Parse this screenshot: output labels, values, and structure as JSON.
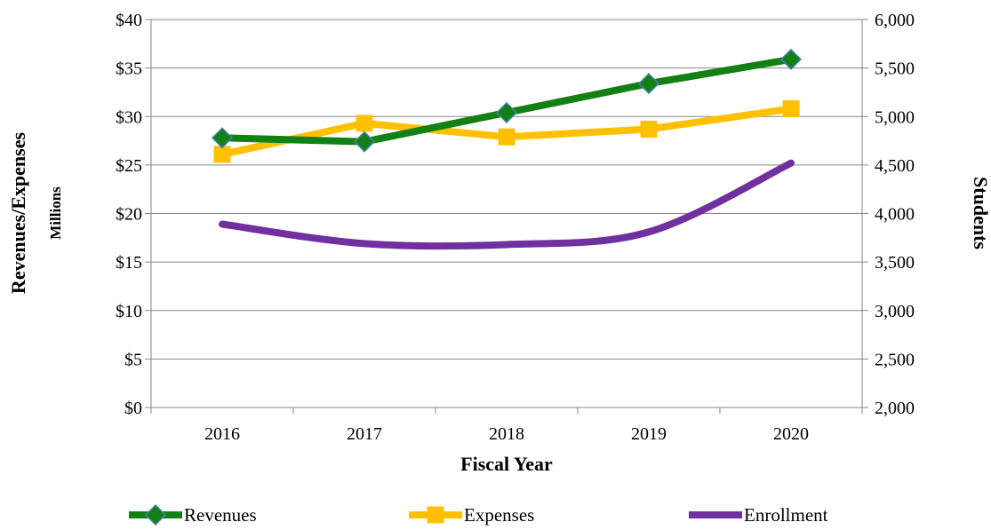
{
  "chart_data": {
    "type": "line",
    "categories": [
      "2016",
      "2017",
      "2018",
      "2019",
      "2020"
    ],
    "xlabel": "Fiscal Year",
    "y_left": {
      "label": "Revenues/Expenses",
      "sublabel": "Millions",
      "range": [
        0,
        40
      ],
      "ticks": [
        0,
        5,
        10,
        15,
        20,
        25,
        30,
        35,
        40
      ],
      "tick_labels": [
        "$0",
        "$5",
        "$10",
        "$15",
        "$20",
        "$25",
        "$30",
        "$35",
        "$40"
      ]
    },
    "y_right": {
      "label": "Students",
      "range": [
        2000,
        6000
      ],
      "ticks": [
        2000,
        2500,
        3000,
        3500,
        4000,
        4500,
        5000,
        5500,
        6000
      ],
      "tick_labels": [
        "2,000",
        "2,500",
        "3,000",
        "3,500",
        "4,000",
        "4,500",
        "5,000",
        "5,500",
        "6,000"
      ]
    },
    "series": [
      {
        "name": "Revenues",
        "axis": "left",
        "values": [
          27.8,
          27.4,
          30.4,
          33.4,
          35.9
        ],
        "color": "#128012",
        "marker": "diamond",
        "marker_fill": "#128012",
        "marker_stroke": "#4a7fb5",
        "smooth": false
      },
      {
        "name": "Expenses",
        "axis": "left",
        "values": [
          26.1,
          29.3,
          27.9,
          28.7,
          30.8
        ],
        "color": "#ffc000",
        "marker": "square",
        "marker_fill": "#ffc000",
        "smooth": false
      },
      {
        "name": "Enrollment",
        "axis": "right",
        "values": [
          3890,
          3690,
          3680,
          3810,
          4520
        ],
        "color": "#7030a0",
        "marker": "none",
        "smooth": true
      }
    ],
    "grid": "horizontal",
    "legend_position": "bottom"
  }
}
